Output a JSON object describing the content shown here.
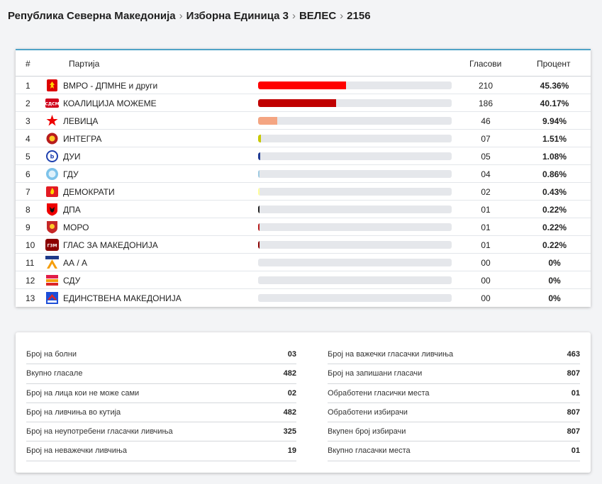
{
  "breadcrumb": {
    "items": [
      "Република Северна Македонија",
      "Изборна Единица 3",
      "ВЕЛЕС",
      "2156"
    ]
  },
  "table": {
    "headers": {
      "index": "#",
      "party": "Партија",
      "votes": "Гласови",
      "percent": "Процент"
    },
    "rows": [
      {
        "index": "1",
        "party": "ВМРО - ДПМНЕ и други",
        "votes": "210",
        "percent": "45.36%",
        "fraction": 0.4536,
        "bar_color": "#ff0000",
        "logo_icon": "vmro-dpmne-lion-icon"
      },
      {
        "index": "2",
        "party": "КОАЛИЦИЈА МОЖЕМЕ",
        "votes": "186",
        "percent": "40.17%",
        "fraction": 0.4017,
        "bar_color": "#c00000",
        "logo_icon": "sdsm-mozeme-icon"
      },
      {
        "index": "3",
        "party": "ЛЕВИЦА",
        "votes": "46",
        "percent": "9.94%",
        "fraction": 0.0994,
        "bar_color": "#f4a582",
        "logo_icon": "levica-star-icon"
      },
      {
        "index": "4",
        "party": "ИНТЕГРА",
        "votes": "07",
        "percent": "1.51%",
        "fraction": 0.0151,
        "bar_color": "#c8c800",
        "logo_icon": "integra-icon"
      },
      {
        "index": "5",
        "party": "ДУИ",
        "votes": "05",
        "percent": "1.08%",
        "fraction": 0.0108,
        "bar_color": "#1f3a93",
        "logo_icon": "dui-icon"
      },
      {
        "index": "6",
        "party": "ГДУ",
        "votes": "04",
        "percent": "0.86%",
        "fraction": 0.0086,
        "bar_color": "#9ecae1",
        "logo_icon": "gdu-icon"
      },
      {
        "index": "7",
        "party": "ДЕМОКРАТИ",
        "votes": "02",
        "percent": "0.43%",
        "fraction": 0.0043,
        "bar_color": "#ffff99",
        "logo_icon": "demokrati-flame-icon"
      },
      {
        "index": "8",
        "party": "ДПА",
        "votes": "01",
        "percent": "0.22%",
        "fraction": 0.0022,
        "bar_color": "#222222",
        "logo_icon": "dpa-eagle-icon"
      },
      {
        "index": "9",
        "party": "МОРО",
        "votes": "01",
        "percent": "0.22%",
        "fraction": 0.0022,
        "bar_color": "#b71c1c",
        "logo_icon": "moro-shield-icon"
      },
      {
        "index": "10",
        "party": "ГЛАС ЗА МАКЕДОНИЈА",
        "votes": "01",
        "percent": "0.22%",
        "fraction": 0.0022,
        "bar_color": "#8b0000",
        "logo_icon": "glas-za-makedonija-icon"
      },
      {
        "index": "11",
        "party": "АА / А",
        "votes": "00",
        "percent": "0%",
        "fraction": 0,
        "bar_color": "#e5e7eb",
        "logo_icon": "aa-a-icon"
      },
      {
        "index": "12",
        "party": "СДУ",
        "votes": "00",
        "percent": "0%",
        "fraction": 0,
        "bar_color": "#e5e7eb",
        "logo_icon": "sdu-icon"
      },
      {
        "index": "13",
        "party": "ЕДИНСТВЕНА МАКЕДОНИЈА",
        "votes": "00",
        "percent": "0%",
        "fraction": 0,
        "bar_color": "#e5e7eb",
        "logo_icon": "edinstvena-makedonija-icon"
      }
    ]
  },
  "stats": {
    "left": [
      {
        "label": "Број на болни",
        "value": "03"
      },
      {
        "label": "Вкупно гласале",
        "value": "482"
      },
      {
        "label": "Број на лица кои не може сами",
        "value": "02"
      },
      {
        "label": "Број на ливчиња во кутија",
        "value": "482"
      },
      {
        "label": "Број на неупотребени гласачки ливчиња",
        "value": "325"
      },
      {
        "label": "Број на неважечки ливчиња",
        "value": "19"
      }
    ],
    "right": [
      {
        "label": "Број на важечки гласачки ливчиња",
        "value": "463"
      },
      {
        "label": "Број на запишани гласачи",
        "value": "807"
      },
      {
        "label": "Обработени гласички места",
        "value": "01"
      },
      {
        "label": "Обработени избирачи",
        "value": "807"
      },
      {
        "label": "Вкупен број избирачи",
        "value": "807"
      },
      {
        "label": "Вкупно гласачки места",
        "value": "01"
      }
    ]
  }
}
